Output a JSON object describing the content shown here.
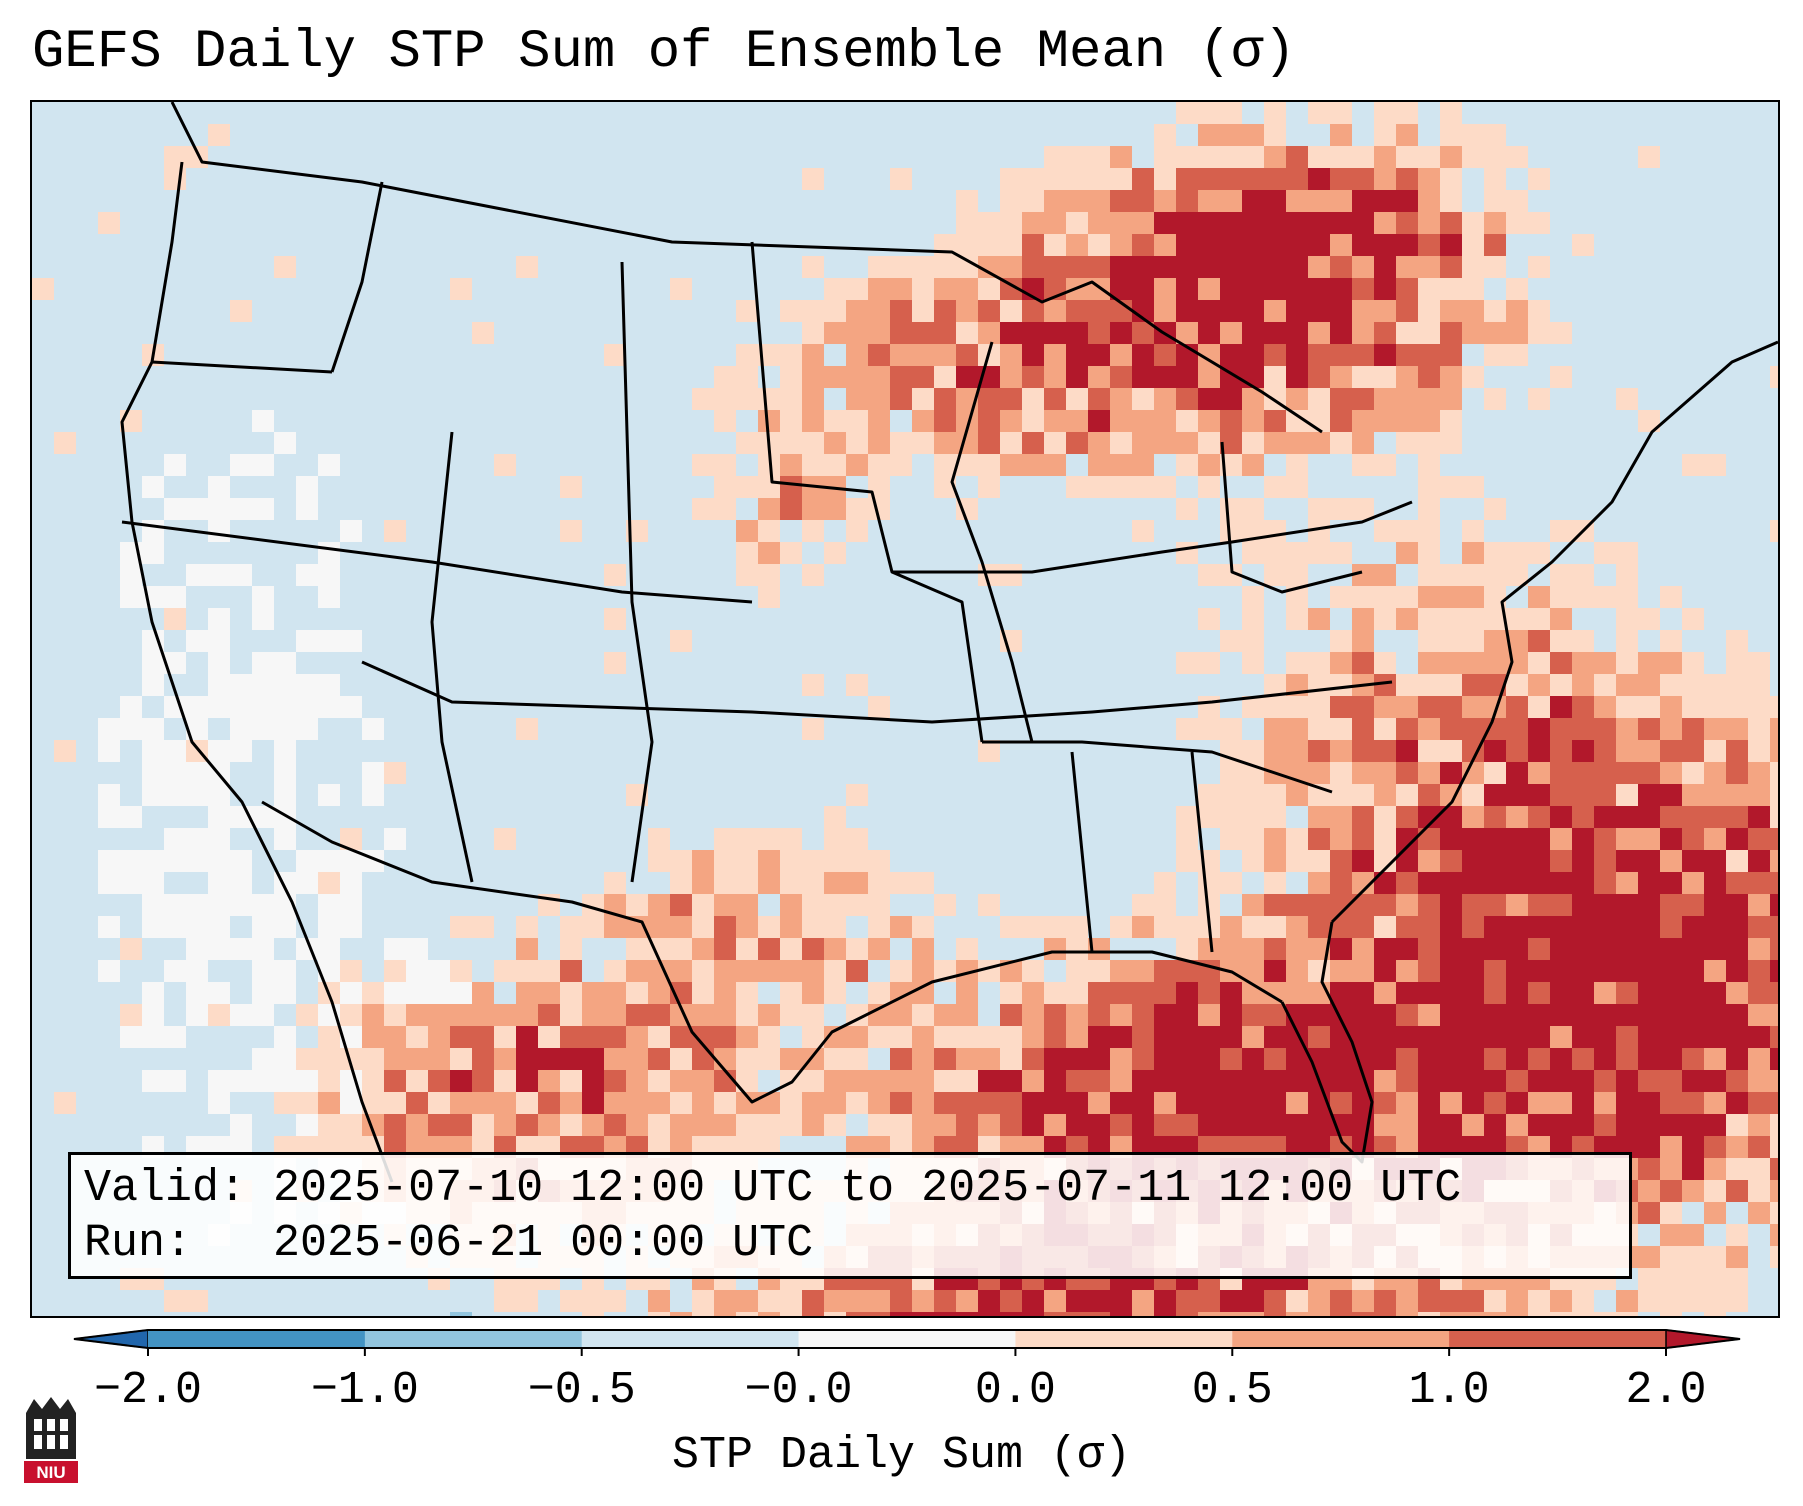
{
  "title": "GEFS Daily STP Sum of Ensemble Mean (σ)",
  "info": {
    "valid_label": "Valid:",
    "valid_value": "2025-07-10 12:00 UTC to 2025-07-11 12:00 UTC",
    "run_label": "Run:",
    "run_value": "2025-06-21 00:00 UTC"
  },
  "colorbar": {
    "label": "STP Daily Sum (σ)",
    "ticks": [
      "−2.0",
      "−1.0",
      "−0.5",
      "−0.0",
      "0.0",
      "0.5",
      "1.0",
      "2.0"
    ],
    "bins": [
      {
        "from": -2.0,
        "to": -1.0,
        "color": "#4393c3"
      },
      {
        "from": -1.0,
        "to": -0.5,
        "color": "#92c5de"
      },
      {
        "from": -0.5,
        "to": -0.0,
        "color": "#d1e5f0"
      },
      {
        "from": -0.0,
        "to": 0.0,
        "color": "#f7f7f7"
      },
      {
        "from": 0.0,
        "to": 0.5,
        "color": "#fddbc7"
      },
      {
        "from": 0.5,
        "to": 1.0,
        "color": "#f4a582"
      },
      {
        "from": 1.0,
        "to": 2.0,
        "color": "#d6604d"
      }
    ],
    "under_color": "#2166ac",
    "over_color": "#b2182b"
  },
  "map": {
    "background_value_color": "#d1e5f0",
    "neutral_color": "#f7f7f7",
    "border_color": "#000000"
  },
  "logo": {
    "text": "NIU",
    "color": "#c8102e"
  }
}
